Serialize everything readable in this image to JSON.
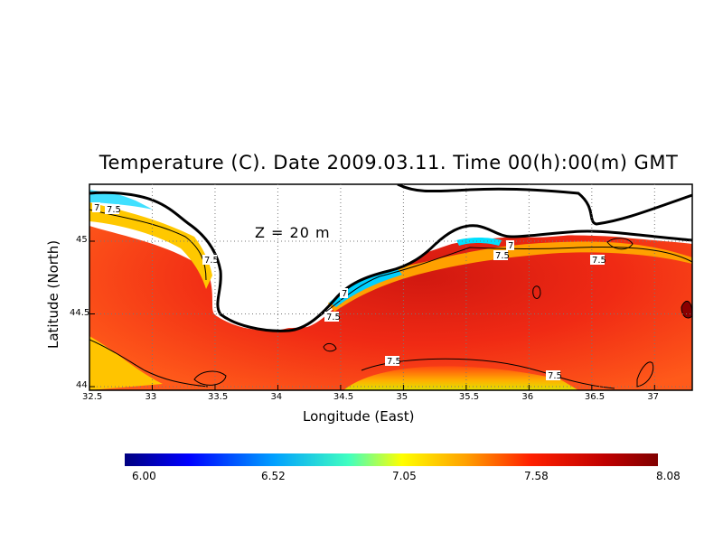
{
  "title": "Temperature (C). Date 2009.03.11. Time 00(h):00(m) GMT",
  "annotation": "Z  =  20  m",
  "x_axis_label": "Longitude (East)",
  "y_axis_label": "Latitude (North)",
  "x_ticks": [
    "32.5",
    "33",
    "33.5",
    "34",
    "34.5",
    "35",
    "35.5",
    "36",
    "36.5",
    "37"
  ],
  "y_ticks": [
    "44",
    "44.5",
    "45"
  ],
  "contour_labels": [
    "7",
    "7.5",
    "7.5",
    "7.5",
    "7",
    "7",
    "7.5",
    "7.5",
    "7.5",
    "7.5"
  ],
  "colorbar": {
    "labels": [
      "6.00",
      "6.52",
      "7.05",
      "7.58",
      "8.08"
    ],
    "colors": [
      "#000080",
      "#0000ff",
      "#00c8ff",
      "#7fffd4",
      "#ffff00",
      "#ffa500",
      "#ff2000",
      "#c00000",
      "#800000"
    ]
  },
  "map_colors": {
    "land": "#ffffff",
    "coast": "#000000",
    "cold": "#ffd200",
    "warm": "#ff3a10",
    "hot": "#cc1010",
    "grid": "#888888"
  }
}
